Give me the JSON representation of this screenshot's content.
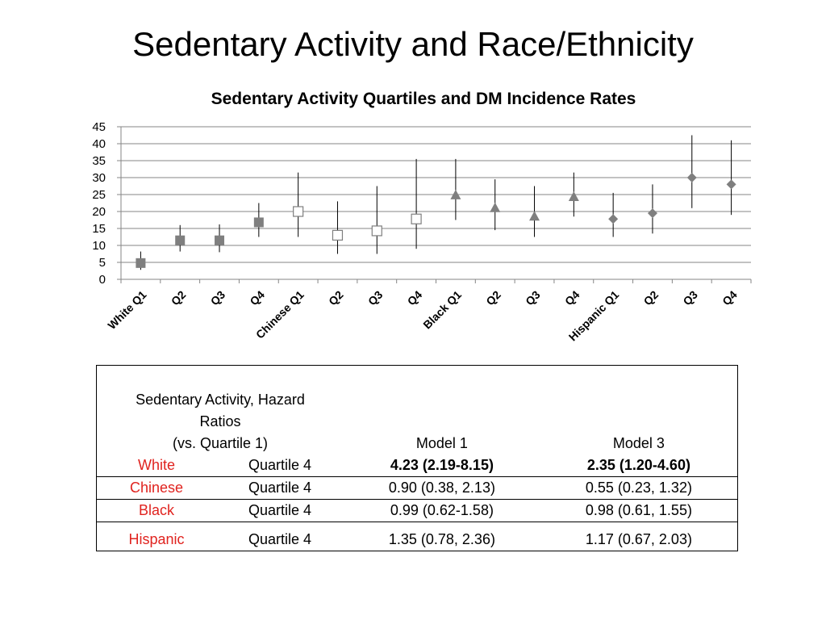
{
  "slide": {
    "title": "Sedentary Activity and Race/Ethnicity"
  },
  "chart_data": {
    "type": "scatter",
    "title": "Sedentary Activity Quartiles and DM Incidence Rates",
    "xlabel": "",
    "ylabel": "",
    "ylim": [
      0,
      45
    ],
    "yticks": [
      0,
      5,
      10,
      15,
      20,
      25,
      30,
      35,
      40,
      45
    ],
    "grid": true,
    "legend": "none",
    "categories": [
      "White Q1",
      "Q2",
      "Q3",
      "Q4",
      "Chinese Q1",
      "Q2",
      "Q3",
      "Q4",
      "Black Q1",
      "Q2",
      "Q3",
      "Q4",
      "Hispanic Q1",
      "Q2",
      "Q3",
      "Q4"
    ],
    "series": [
      {
        "marker": "filled-square",
        "color": "#7f7f7f",
        "values": [
          4.8,
          11.5,
          11.5,
          16.8
        ],
        "low": [
          2.8,
          8.2,
          8.0,
          12.5
        ],
        "high": [
          8.2,
          16.0,
          16.2,
          22.5
        ],
        "start": 0
      },
      {
        "marker": "hollow-square",
        "color": "#7f7f7f",
        "values": [
          20.0,
          13.0,
          14.3,
          17.8
        ],
        "low": [
          12.5,
          7.5,
          7.5,
          9.0
        ],
        "high": [
          31.5,
          23.0,
          27.5,
          35.5
        ],
        "start": 4
      },
      {
        "marker": "triangle",
        "color": "#7f7f7f",
        "values": [
          24.8,
          21.0,
          18.5,
          24.3
        ],
        "low": [
          17.5,
          14.5,
          12.5,
          18.5
        ],
        "high": [
          35.5,
          29.5,
          27.5,
          31.5
        ],
        "start": 8
      },
      {
        "marker": "diamond",
        "color": "#7f7f7f",
        "values": [
          17.8,
          19.5,
          30.0,
          28.0
        ],
        "low": [
          12.5,
          13.5,
          21.0,
          19.0
        ],
        "high": [
          25.5,
          28.0,
          42.5,
          41.0
        ],
        "start": 12
      }
    ]
  },
  "table": {
    "header": {
      "line1": "Sedentary Activity, Hazard",
      "line2": "Ratios",
      "line3": "(vs. Quartile 1)",
      "model1": "Model 1",
      "model3": "Model 3"
    },
    "rows": [
      {
        "race": "White",
        "quartile": "Quartile 4",
        "model1": "4.23 (2.19-8.15)",
        "model3": "2.35 (1.20-4.60)"
      },
      {
        "race": "Chinese",
        "quartile": "Quartile 4",
        "model1": "0.90 (0.38, 2.13)",
        "model3": "0.55 (0.23, 1.32)"
      },
      {
        "race": "Black",
        "quartile": "Quartile 4",
        "model1": "0.99 (0.62-1.58)",
        "model3": "0.98 (0.61, 1.55)"
      },
      {
        "race": "Hispanic",
        "quartile": "Quartile 4",
        "model1": "1.35 (0.78, 2.36)",
        "model3": "1.17 (0.67, 2.03)"
      }
    ],
    "race_color": "#e0231f"
  }
}
